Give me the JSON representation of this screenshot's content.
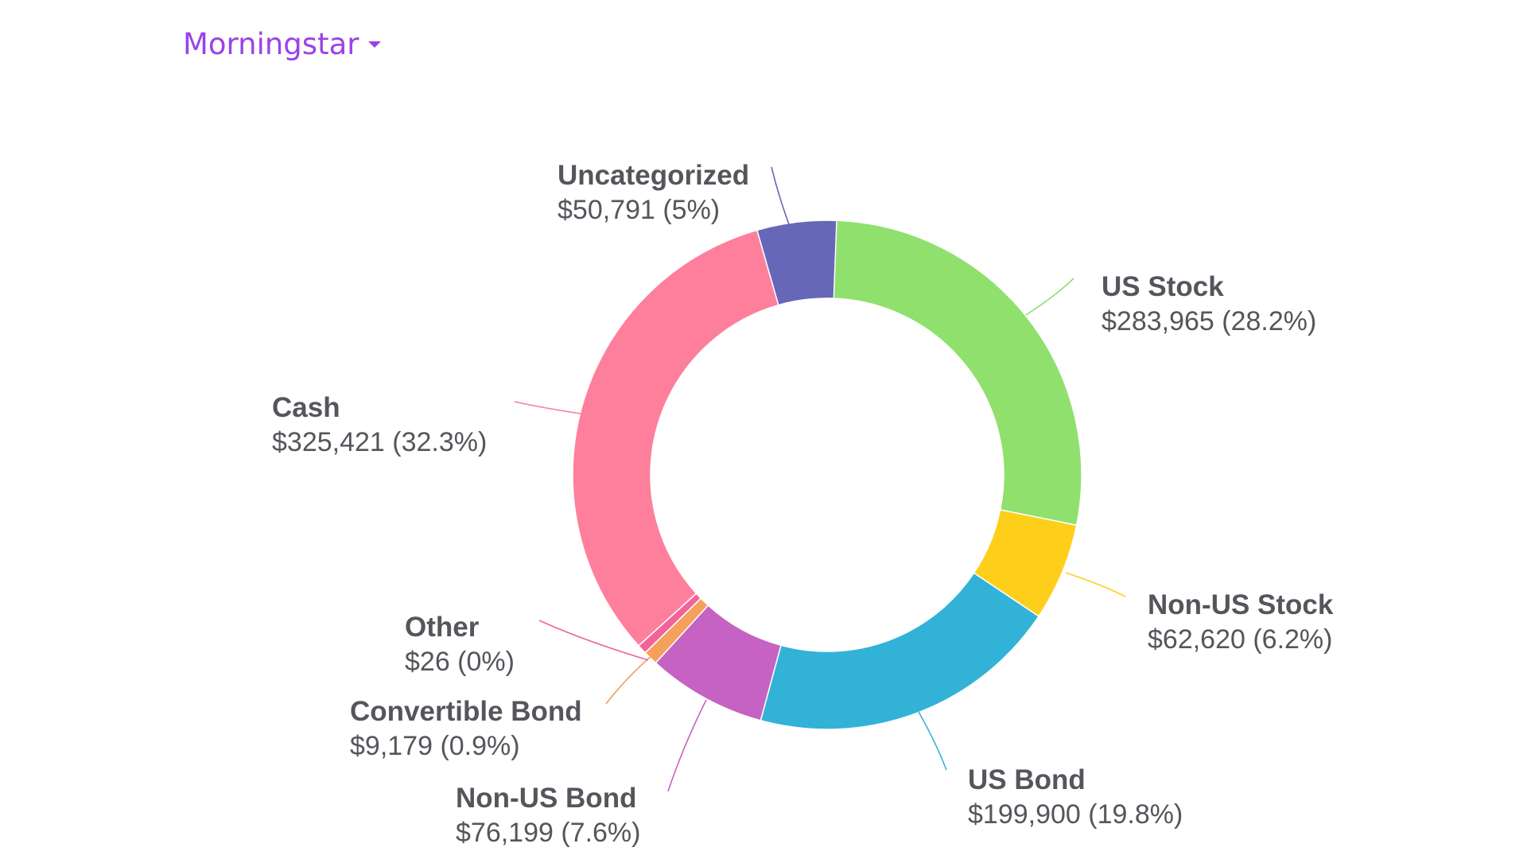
{
  "dropdown": {
    "label": "Morningstar",
    "color": "#9b42e8",
    "icon": "caret-down-icon"
  },
  "chart_data": {
    "type": "pie",
    "title": "",
    "donut": true,
    "series": [
      {
        "name": "",
        "slices": [
          {
            "label": "US Stock",
            "value": 283965,
            "display": "$283,965 (28.2%)",
            "color": "#8fe06c"
          },
          {
            "label": "Non-US Stock",
            "value": 62620,
            "display": "$62,620 (6.2%)",
            "color": "#fdcf1a"
          },
          {
            "label": "US Bond",
            "value": 199900,
            "display": "$199,900 (19.8%)",
            "color": "#33b2d8"
          },
          {
            "label": "Non-US Bond",
            "value": 76199,
            "display": "$76,199 (7.6%)",
            "color": "#c562c3"
          },
          {
            "label": "Convertible Bond",
            "value": 9179,
            "display": "$9,179 (0.9%)",
            "color": "#f5a05c"
          },
          {
            "label": "Other",
            "value": 26,
            "display": "$26 (0%)",
            "color": "#f2639a"
          },
          {
            "label": "Cash",
            "value": 325421,
            "display": "$325,421 (32.3%)",
            "color": "#fe7f9c"
          },
          {
            "label": "Uncategorized",
            "value": 50791,
            "display": "$50,791 (5%)",
            "color": "#6667b8"
          }
        ]
      }
    ],
    "legend": "none",
    "data_labels": "outside-with-leader-lines"
  }
}
